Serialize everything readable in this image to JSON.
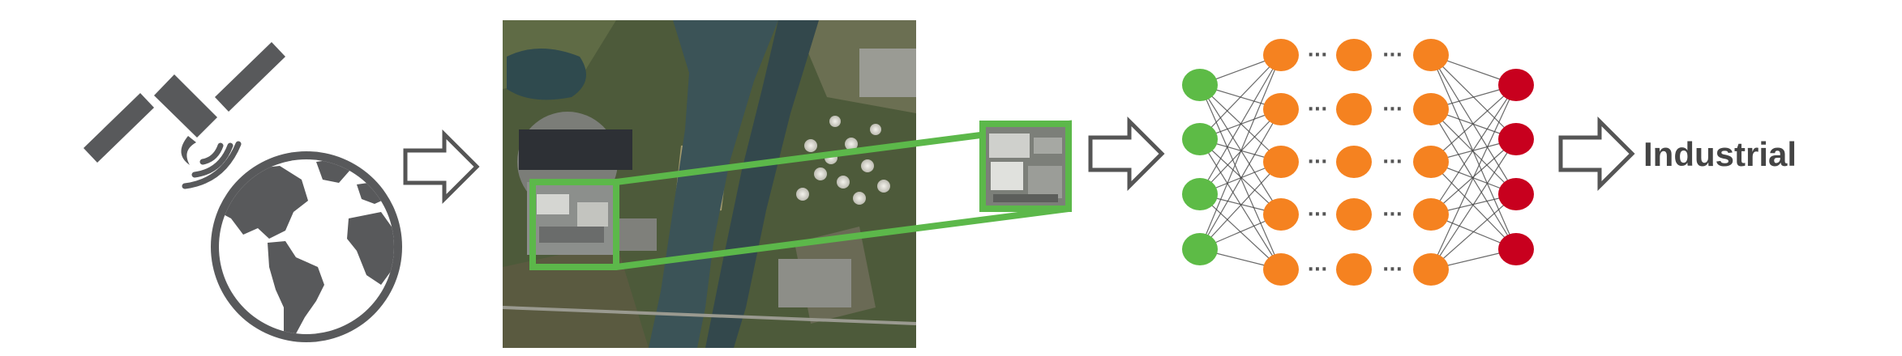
{
  "icons": {
    "satellite": "satellite-icon",
    "globe": "globe-icon",
    "arrow": "right-arrow-icon"
  },
  "colors": {
    "icon_gray": "#58595b",
    "highlight_green": "#5cb84a",
    "input_node": "#5dbb46",
    "hidden_node": "#f58220",
    "output_node": "#c8001e",
    "edge": "#444444"
  },
  "network": {
    "input_nodes": 4,
    "hidden_layers": 3,
    "hidden_nodes_per_layer": 5,
    "output_nodes": 4,
    "ellipsis": "···"
  },
  "result": {
    "label": "Industrial"
  }
}
